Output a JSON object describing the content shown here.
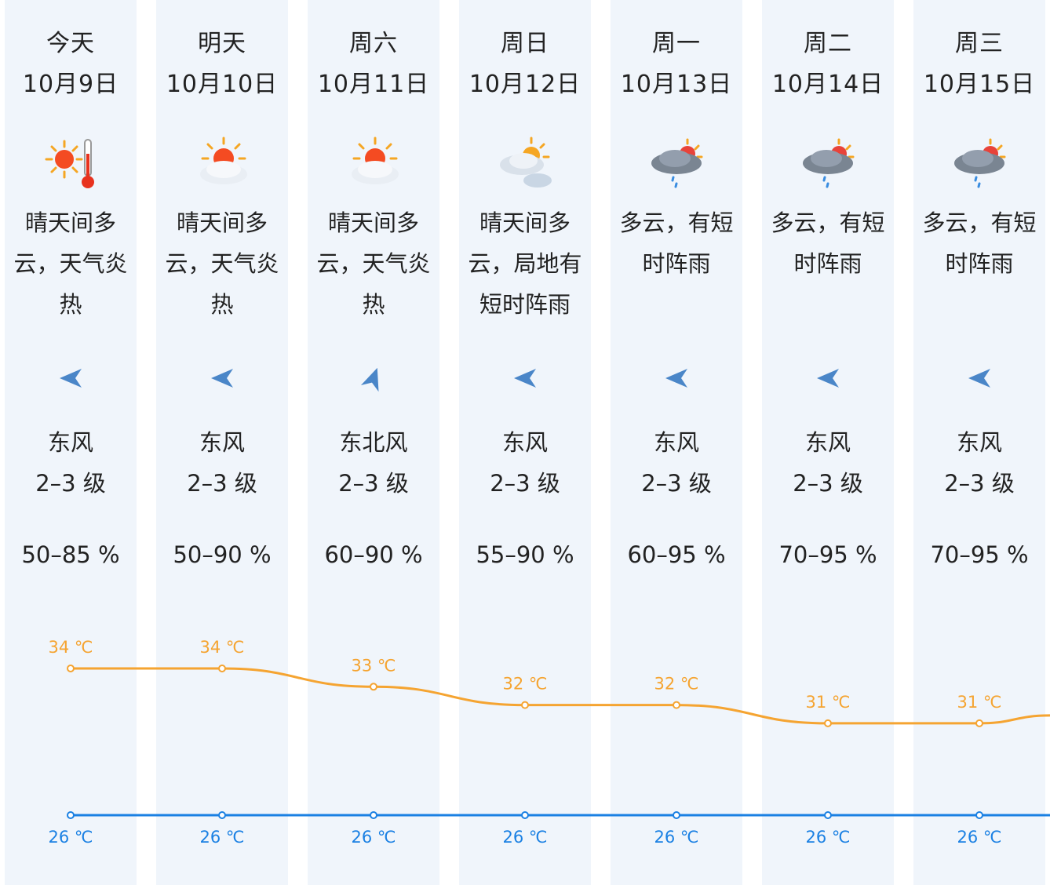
{
  "colors": {
    "column_bg": "#f0f5fb",
    "high_line": "#f5a431",
    "low_line": "#1a80e3",
    "wind_arrow": "#4a86c8"
  },
  "days": [
    {
      "day": "今天",
      "date": "10月9日",
      "icon": "sunny-hot-thermometer-icon",
      "desc_lines": [
        "晴天间多",
        "云，天气炎",
        "热"
      ],
      "wind_dir": "东风",
      "wind_level": "2–3 级",
      "wind_arrow": "wind-east-arrow-icon",
      "humidity": "50–85 %"
    },
    {
      "day": "明天",
      "date": "10月10日",
      "icon": "sun-behind-cloud-icon",
      "desc_lines": [
        "晴天间多",
        "云，天气炎",
        "热"
      ],
      "wind_dir": "东风",
      "wind_level": "2–3 级",
      "wind_arrow": "wind-east-arrow-icon",
      "humidity": "50–90 %"
    },
    {
      "day": "周六",
      "date": "10月11日",
      "icon": "sun-behind-cloud-icon",
      "desc_lines": [
        "晴天间多",
        "云，天气炎",
        "热"
      ],
      "wind_dir": "东北风",
      "wind_level": "2–3 级",
      "wind_arrow": "wind-northeast-arrow-icon",
      "humidity": "60–90 %"
    },
    {
      "day": "周日",
      "date": "10月12日",
      "icon": "sun-clouds-icon",
      "desc_lines": [
        "晴天间多",
        "云，局地有",
        "短时阵雨"
      ],
      "wind_dir": "东风",
      "wind_level": "2–3 级",
      "wind_arrow": "wind-east-arrow-icon",
      "humidity": "55–90 %"
    },
    {
      "day": "周一",
      "date": "10月13日",
      "icon": "cloud-sun-rain-icon",
      "desc_lines": [
        "多云，有短",
        "时阵雨"
      ],
      "wind_dir": "东风",
      "wind_level": "2–3 级",
      "wind_arrow": "wind-east-arrow-icon",
      "humidity": "60–95 %"
    },
    {
      "day": "周二",
      "date": "10月14日",
      "icon": "cloud-sun-rain-icon",
      "desc_lines": [
        "多云，有短",
        "时阵雨"
      ],
      "wind_dir": "东风",
      "wind_level": "2–3 级",
      "wind_arrow": "wind-east-arrow-icon",
      "humidity": "70–95 %"
    },
    {
      "day": "周三",
      "date": "10月15日",
      "icon": "cloud-sun-rain-icon",
      "desc_lines": [
        "多云，有短",
        "时阵雨"
      ],
      "wind_dir": "东风",
      "wind_level": "2–3 级",
      "wind_arrow": "wind-east-arrow-icon",
      "humidity": "70–95 %"
    }
  ],
  "temperature": {
    "unit": "℃",
    "high": [
      34,
      34,
      33,
      32,
      32,
      31,
      31
    ],
    "low": [
      26,
      26,
      26,
      26,
      26,
      26,
      26
    ],
    "high_labels": [
      "34 ℃",
      "34 ℃",
      "33 ℃",
      "32 ℃",
      "32 ℃",
      "31 ℃",
      "31 ℃"
    ],
    "low_labels": [
      "26 ℃",
      "26 ℃",
      "26 ℃",
      "26 ℃",
      "26 ℃",
      "26 ℃",
      "26 ℃"
    ]
  }
}
